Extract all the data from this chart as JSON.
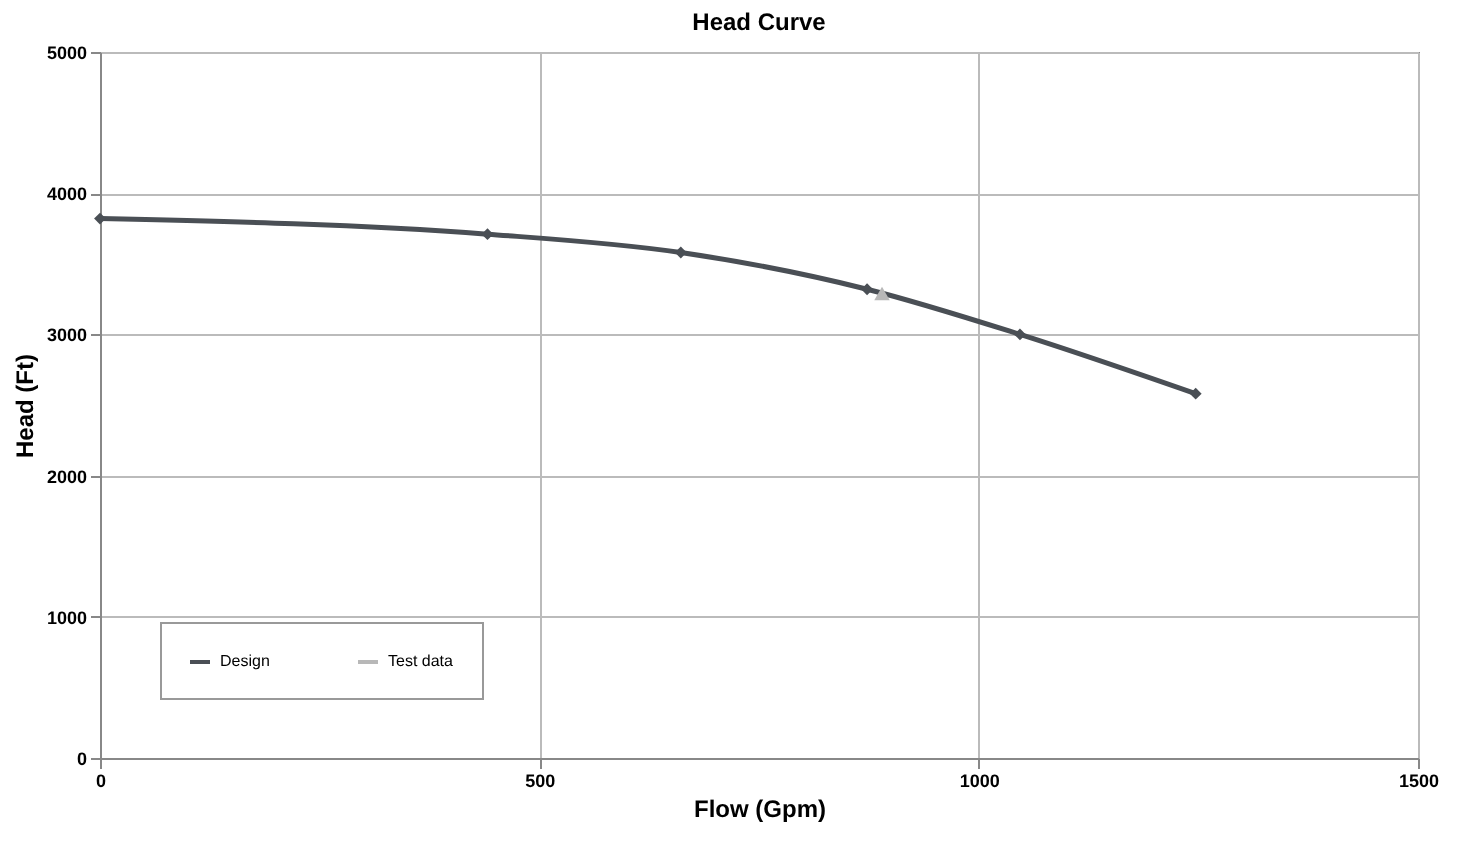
{
  "chart_data": {
    "type": "line",
    "title": "Head Curve",
    "xlabel": "Flow (Gpm)",
    "ylabel": "Head (Ft)",
    "xlim": [
      0,
      1500
    ],
    "xticks": [
      0,
      500,
      1000,
      1500
    ],
    "ylim": [
      0,
      5000
    ],
    "yticks": [
      0,
      1000,
      2000,
      3000,
      4000,
      5000
    ],
    "grid": true,
    "legend": "bottom left",
    "line_style": "solid",
    "series": [
      {
        "name": "Design",
        "color": "#4a4f55",
        "marker": "diamond",
        "x": [
          0,
          441,
          661,
          873,
          1047,
          1247
        ],
        "values": [
          3820,
          3710,
          3580,
          3320,
          3000,
          2580
        ]
      },
      {
        "name": "Test data",
        "color": "#b8b8b8",
        "marker": "triangle",
        "x": [
          890
        ],
        "values": [
          3290
        ]
      }
    ]
  }
}
